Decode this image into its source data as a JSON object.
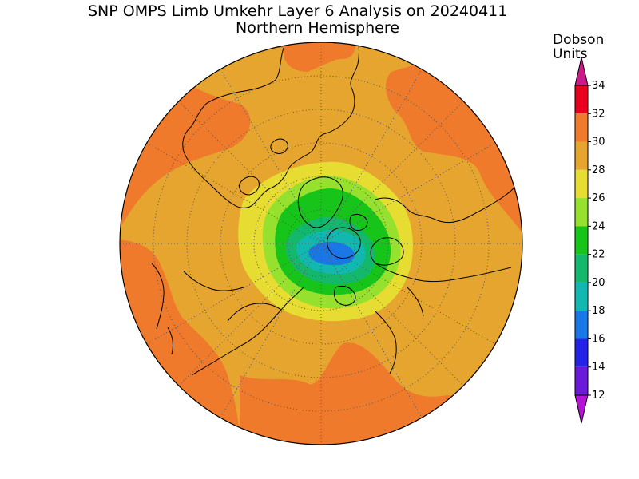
{
  "title_line1": "SNP OMPS Limb Umkehr Layer 6 Analysis on 20240411",
  "title_line2": "Northern Hemisphere",
  "colorbar": {
    "unit_line1": "Dobson",
    "unit_line2": "Units",
    "tick_labels": [
      "34",
      "32",
      "30",
      "28",
      "26",
      "24",
      "22",
      "20",
      "18",
      "16",
      "14",
      "12"
    ],
    "bins": [
      {
        "from": 32,
        "to": 34,
        "color": "#e8001c"
      },
      {
        "from": 30,
        "to": 32,
        "color": "#ef7a2c"
      },
      {
        "from": 28,
        "to": 30,
        "color": "#e6a52f"
      },
      {
        "from": 26,
        "to": 28,
        "color": "#e6dc32"
      },
      {
        "from": 24,
        "to": 26,
        "color": "#96e02e"
      },
      {
        "from": 22,
        "to": 24,
        "color": "#16c41a"
      },
      {
        "from": 20,
        "to": 22,
        "color": "#14b86c"
      },
      {
        "from": 18,
        "to": 20,
        "color": "#12b7b0"
      },
      {
        "from": 16,
        "to": 18,
        "color": "#1a78e6"
      },
      {
        "from": 14,
        "to": 16,
        "color": "#2323e6"
      },
      {
        "from": 12,
        "to": 14,
        "color": "#6a1ad6"
      }
    ],
    "over_color": "#cc1a8a",
    "under_color": "#b414d6"
  },
  "map": {
    "projection": "north-polar-stereographic",
    "hemisphere": "Northern",
    "field_colors": {
      "ring_outer": "#ef7a2c",
      "ring_mid": "#e6a52f",
      "band_yellow": "#e6dc32",
      "band_lightgreen": "#96e02e",
      "core_green": "#16c41a",
      "core_teal": "#12b7b0",
      "core_blue": "#1a78e6"
    }
  }
}
